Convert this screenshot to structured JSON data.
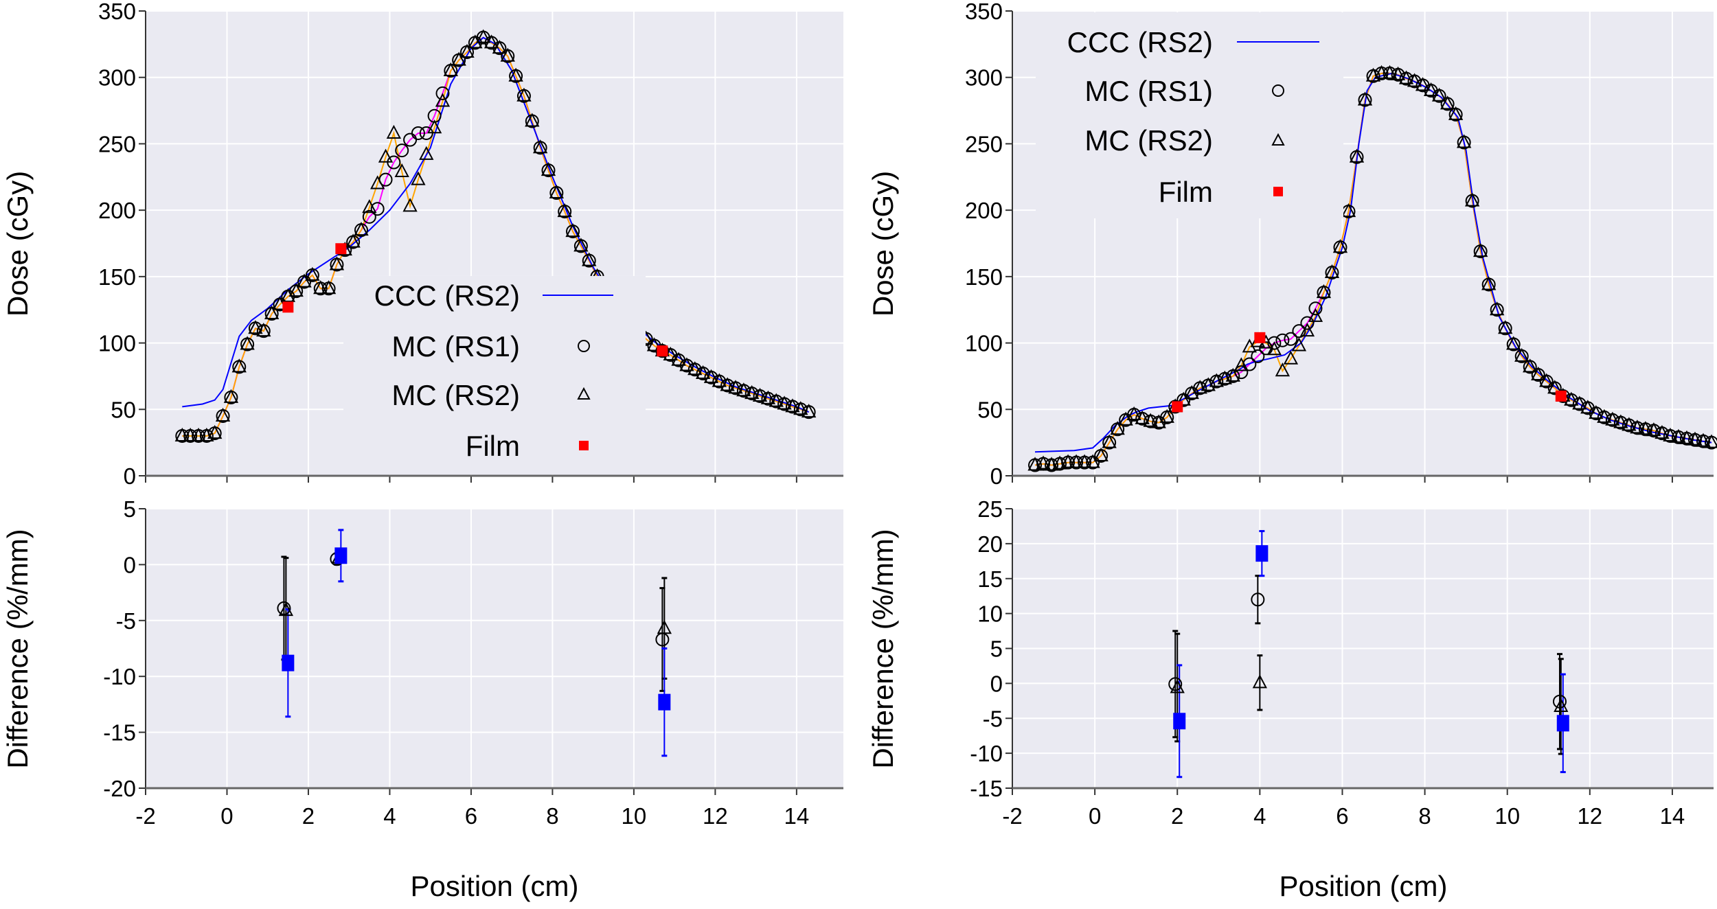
{
  "colors": {
    "background": "#eaeaf2",
    "grid": "#ffffff",
    "ccc": "#0000ff",
    "mc_rs1_line": "#ff00ff",
    "mc_rs2_line": "#ffa500",
    "film": "#ff0000",
    "film_diff": "#0000ff",
    "mc": "#000000"
  },
  "chart_data": [
    {
      "type": "line",
      "panel": "left-dose",
      "ylabel": "Dose (cGy)",
      "xlim": [
        -2,
        15.15
      ],
      "ylim": [
        0,
        350
      ],
      "xticks": [
        -2,
        0,
        2,
        4,
        6,
        8,
        10,
        12,
        14
      ],
      "yticks": [
        0,
        50,
        100,
        150,
        200,
        250,
        300,
        350
      ],
      "ytick_labels": [
        "0",
        "50",
        "100",
        "150",
        "200",
        "250",
        "300",
        "350"
      ],
      "grid": true,
      "legend": {
        "placement": "center-bottom",
        "entries": [
          "CCC (RS2)",
          "MC (RS1)",
          "MC (RS2)",
          "Film"
        ]
      },
      "ccc_rs2": [
        [
          -1.1,
          52
        ],
        [
          -0.6,
          54
        ],
        [
          -0.3,
          57
        ],
        [
          -0.1,
          65
        ],
        [
          0.1,
          85
        ],
        [
          0.3,
          105
        ],
        [
          0.6,
          117
        ],
        [
          1,
          126
        ],
        [
          1.5,
          140
        ],
        [
          2,
          152
        ],
        [
          2.5,
          162
        ],
        [
          3,
          172
        ],
        [
          3.5,
          185
        ],
        [
          4,
          200
        ],
        [
          4.5,
          220
        ],
        [
          5,
          247
        ],
        [
          5.5,
          295
        ],
        [
          6,
          322
        ],
        [
          6.3,
          330
        ],
        [
          6.6,
          325
        ],
        [
          7,
          305
        ],
        [
          7.5,
          265
        ],
        [
          8,
          225
        ],
        [
          8.5,
          188
        ],
        [
          9,
          157
        ],
        [
          9.5,
          132
        ],
        [
          10,
          114
        ],
        [
          10.5,
          101
        ],
        [
          11,
          91
        ],
        [
          11.5,
          82
        ],
        [
          12,
          74
        ],
        [
          12.5,
          67
        ],
        [
          13,
          62
        ],
        [
          13.5,
          57
        ],
        [
          14,
          52
        ],
        [
          14.3,
          48
        ]
      ],
      "mc_rs1": {
        "x_start": -1.1,
        "x_step": 0.2,
        "values": [
          30,
          30,
          30,
          30,
          32,
          45,
          59,
          82,
          99,
          111,
          109,
          122,
          129,
          135,
          139,
          146,
          151,
          141,
          141,
          159,
          170,
          176,
          185,
          195,
          201,
          223,
          236,
          245,
          253,
          258,
          258,
          271,
          288,
          305,
          313,
          319,
          326,
          330,
          326,
          322,
          316,
          301,
          286,
          267,
          247,
          230,
          213,
          199,
          184,
          173,
          162,
          150,
          140,
          130,
          122,
          115,
          109,
          103,
          98,
          94,
          91,
          87,
          83,
          80,
          77,
          74,
          71,
          68,
          66,
          64,
          62,
          60,
          58,
          56,
          54,
          52,
          50,
          48
        ]
      },
      "mc_rs2": {
        "x_start": -1.1,
        "x_step": 0.2,
        "values": [
          30,
          30,
          30,
          30,
          32,
          45,
          59,
          82,
          99,
          111,
          109,
          122,
          129,
          135,
          139,
          146,
          151,
          141,
          141,
          159,
          170,
          176,
          185,
          202,
          220,
          240,
          258,
          229,
          203,
          223,
          242,
          262,
          282,
          305,
          313,
          319,
          326,
          330,
          326,
          322,
          316,
          301,
          286,
          267,
          247,
          230,
          213,
          199,
          184,
          173,
          162,
          150,
          140,
          130,
          122,
          115,
          109,
          103,
          98,
          94,
          91,
          87,
          83,
          80,
          77,
          74,
          71,
          68,
          66,
          64,
          62,
          60,
          58,
          56,
          54,
          52,
          50,
          48
        ]
      },
      "film": [
        [
          1.5,
          127
        ],
        [
          2.8,
          171
        ],
        [
          10.7,
          94
        ]
      ]
    },
    {
      "type": "scatter",
      "panel": "left-difference",
      "xlabel": "Position (cm)",
      "ylabel": "Difference (%/mm)",
      "xlim": [
        -2,
        15.15
      ],
      "ylim": [
        -20,
        5
      ],
      "xticks": [
        -2,
        0,
        2,
        4,
        6,
        8,
        10,
        12,
        14
      ],
      "xtick_labels": [
        "-2",
        "0",
        "2",
        "4",
        "6",
        "8",
        "10",
        "12",
        "14"
      ],
      "yticks": [
        -20,
        -15,
        -10,
        -5,
        0,
        5
      ],
      "ytick_labels": [
        "-20",
        "-15",
        "-10",
        "-5",
        "0",
        "5"
      ],
      "grid": true,
      "mc_rs1": [
        [
          1.4,
          -3.9,
          4.6
        ],
        [
          2.7,
          0.5,
          0.5
        ],
        [
          10.7,
          -6.7,
          4.6
        ]
      ],
      "mc_rs2": [
        [
          1.45,
          -4.1,
          4.7
        ],
        [
          2.75,
          0.6,
          0.5
        ],
        [
          10.75,
          -5.7,
          4.5
        ]
      ],
      "film": [
        [
          1.5,
          -8.8,
          4.8
        ],
        [
          2.8,
          0.8,
          2.3
        ],
        [
          10.75,
          -12.3,
          4.8
        ]
      ]
    },
    {
      "type": "line",
      "panel": "right-dose",
      "ylabel": "Dose (cGy)",
      "xlim": [
        -2,
        15
      ],
      "ylim": [
        0,
        350
      ],
      "xticks": [
        -2,
        0,
        2,
        4,
        6,
        8,
        10,
        12,
        14
      ],
      "yticks": [
        0,
        50,
        100,
        150,
        200,
        250,
        300,
        350
      ],
      "ytick_labels": [
        "0",
        "50",
        "100",
        "150",
        "200",
        "250",
        "300",
        "350"
      ],
      "grid": true,
      "legend": {
        "placement": "top-left",
        "entries": [
          "CCC (RS2)",
          "MC (RS1)",
          "MC (RS2)",
          "Film"
        ]
      },
      "ccc_rs2": [
        [
          -1.45,
          18
        ],
        [
          -0.5,
          19
        ],
        [
          -0.05,
          21
        ],
        [
          0.2,
          28
        ],
        [
          0.5,
          38
        ],
        [
          0.8,
          45
        ],
        [
          1.0,
          48
        ],
        [
          1.3,
          51
        ],
        [
          1.6,
          52
        ],
        [
          1.9,
          53
        ],
        [
          2.1,
          57
        ],
        [
          2.5,
          64
        ],
        [
          3,
          72
        ],
        [
          3.5,
          80
        ],
        [
          3.7,
          84
        ],
        [
          3.9,
          86
        ],
        [
          4.2,
          88
        ],
        [
          4.6,
          91
        ],
        [
          5,
          100
        ],
        [
          5.3,
          115
        ],
        [
          5.6,
          135
        ],
        [
          6,
          172
        ],
        [
          6.2,
          200
        ],
        [
          6.4,
          250
        ],
        [
          6.6,
          290
        ],
        [
          6.8,
          300
        ],
        [
          7.2,
          303
        ],
        [
          7.6,
          299
        ],
        [
          8,
          293
        ],
        [
          8.4,
          285
        ],
        [
          8.8,
          270
        ],
        [
          9,
          245
        ],
        [
          9.2,
          200
        ],
        [
          9.4,
          165
        ],
        [
          9.8,
          120
        ],
        [
          10.2,
          97
        ],
        [
          10.6,
          82
        ],
        [
          11,
          71
        ],
        [
          11.5,
          59
        ],
        [
          12,
          49
        ],
        [
          12.5,
          42
        ],
        [
          13,
          37
        ],
        [
          13.5,
          33
        ],
        [
          14,
          30
        ],
        [
          14.5,
          27
        ],
        [
          14.95,
          25
        ]
      ],
      "mc_rs1": {
        "x_start": -1.45,
        "x_step": 0.2,
        "values": [
          8,
          9,
          8,
          9,
          10,
          10,
          10,
          10,
          15,
          25,
          35,
          42,
          46,
          43,
          41,
          40,
          44,
          52,
          57,
          62,
          66,
          68,
          71,
          73,
          75,
          78,
          84,
          90,
          96,
          100,
          102,
          103,
          109,
          115,
          126,
          138,
          153,
          172,
          199,
          240,
          283,
          301,
          303,
          303,
          302,
          299,
          297,
          294,
          290,
          286,
          280,
          272,
          251,
          207,
          169,
          144,
          125,
          111,
          99,
          90,
          82,
          76,
          71,
          66,
          60,
          57,
          54,
          51,
          47,
          44,
          42,
          40,
          38,
          36,
          35,
          34,
          32,
          30,
          29,
          28,
          27,
          26,
          25
        ]
      },
      "mc_rs2": {
        "x_start": -1.45,
        "x_step": 0.2,
        "values": [
          8,
          9,
          8,
          9,
          10,
          10,
          10,
          10,
          15,
          25,
          35,
          42,
          46,
          43,
          41,
          40,
          44,
          52,
          57,
          62,
          66,
          68,
          71,
          73,
          75,
          83,
          97,
          101,
          100,
          95,
          79,
          88,
          98,
          109,
          120,
          138,
          153,
          172,
          199,
          240,
          283,
          301,
          303,
          303,
          302,
          299,
          297,
          294,
          290,
          286,
          280,
          272,
          251,
          207,
          169,
          144,
          125,
          111,
          99,
          90,
          82,
          76,
          71,
          66,
          60,
          57,
          54,
          51,
          47,
          44,
          42,
          40,
          38,
          36,
          35,
          34,
          32,
          30,
          29,
          28,
          27,
          26,
          25
        ]
      },
      "film": [
        [
          2.0,
          52
        ],
        [
          4.0,
          104
        ],
        [
          11.3,
          60
        ]
      ]
    },
    {
      "type": "scatter",
      "panel": "right-difference",
      "xlabel": "Position (cm)",
      "ylabel": "Difference (%/mm)",
      "xlim": [
        -2,
        15
      ],
      "ylim": [
        -15,
        25
      ],
      "xticks": [
        -2,
        0,
        2,
        4,
        6,
        8,
        10,
        12,
        14
      ],
      "xtick_labels": [
        "-2",
        "0",
        "2",
        "4",
        "6",
        "8",
        "10",
        "12",
        "14"
      ],
      "yticks": [
        -15,
        -10,
        -5,
        0,
        5,
        10,
        15,
        20,
        25
      ],
      "ytick_labels": [
        "-15",
        "-10",
        "-5",
        "0",
        "5",
        "10",
        "15",
        "20",
        "25"
      ],
      "grid": true,
      "mc_rs1": [
        [
          1.95,
          -0.1,
          7.6
        ],
        [
          3.95,
          12.0,
          3.4
        ],
        [
          11.27,
          -2.6,
          6.8
        ]
      ],
      "mc_rs2": [
        [
          2.0,
          -0.6,
          7.7
        ],
        [
          4.0,
          0.1,
          3.9
        ],
        [
          11.3,
          -3.3,
          6.8
        ]
      ],
      "film": [
        [
          2.05,
          -5.4,
          8.0
        ],
        [
          4.05,
          18.6,
          3.2
        ],
        [
          11.35,
          -5.7,
          7.0
        ]
      ]
    }
  ]
}
